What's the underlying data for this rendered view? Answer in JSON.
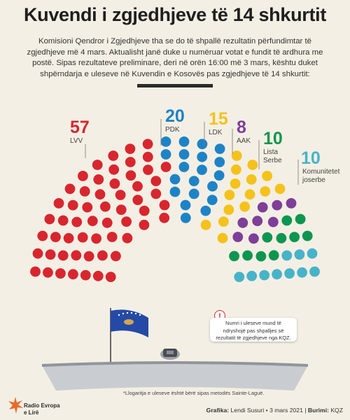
{
  "header": {
    "title": "Kuvendi i zgjedhjeve të 14 shkurtit",
    "intro": "Komisioni Qendror i Zgjedhjeve tha se do të shpallë rezultatin përfundimtar të zgjedhjeve më 4 mars. Aktualisht janë duke u numëruar votat e fundit të ardhura me postë. Sipas rezultateve preliminare, deri në orën 16:00 më 3 mars, kështu duket shpërndarja e uleseve në Kuvendin e Kosovës pas zgjedhjeve të 14 shkurtit:"
  },
  "chart_data": {
    "type": "parliament",
    "total_seats": 120,
    "series": [
      {
        "name": "LVV",
        "value": 57,
        "color": "#d8262f"
      },
      {
        "name": "PDK",
        "value": 20,
        "color": "#1e83c6"
      },
      {
        "name": "LDK",
        "value": 15,
        "color": "#f4c21b"
      },
      {
        "name": "AAK",
        "value": 8,
        "color": "#7e3f98"
      },
      {
        "name": "Lista Serbe",
        "value": 10,
        "color": "#0c9650"
      },
      {
        "name": "Komunitetet joserbe",
        "value": 10,
        "color": "#47b3c9"
      }
    ]
  },
  "note": {
    "icon": "exclamation-icon",
    "text": "Numri i uleseve mund të ndryshojë pas shpalljes së rezultatit të zgjedhjeve nga KQZ."
  },
  "footnote": "*Llogaritja e uleseve është bërë sipas metodës Sainte-Laguë.",
  "credit": {
    "grafika_label": "Grafika:",
    "grafika_value": "Lendi Susuri • 3 mars 2021 |",
    "burimi_label": "Burimi:",
    "burimi_value": "KQZ"
  },
  "logo": {
    "line1": "Radio Evropa",
    "line2": "e Lirë"
  }
}
